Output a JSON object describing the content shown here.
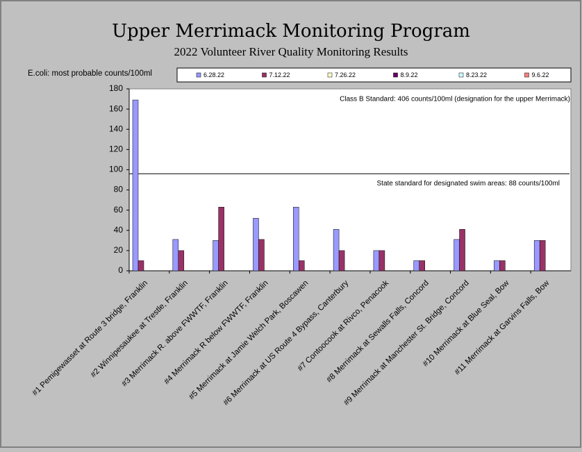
{
  "chart_data": {
    "type": "bar",
    "title": "Upper Merrimack Monitoring Program",
    "subtitle": "2022 Volunteer River Quality Monitoring Results",
    "y_label": "E.coli: most probable counts/100ml",
    "categories": [
      "#1 Pemigewasset at Route 3 bridge, Franklin",
      "#2 Winnipesaukee at Trestle, Franklin",
      "#3 Merrimack R. above FWWTF, Franklin",
      "#4 Merrimack R below FWWTF, Franklin",
      "#5 Merrimack at Jamie Welch Park, Boscawen",
      "#6 Merrimack at US Route 4 Bypass, Canterbury",
      "#7 Contoocook at Rivco, Penacook",
      "#8 Merrimack at Sewalls Falls, Concord",
      "#9 Merrimack at Manchester St. Bridge, Concord",
      "#10 Merrimack at Blue Seal, Bow",
      "#11 Merrimack at Garvins Falls, Bow"
    ],
    "series": [
      {
        "name": "6.28.22",
        "color": "#9999ff",
        "values": [
          169,
          31,
          30,
          52,
          63,
          41,
          20,
          10,
          31,
          10,
          30
        ]
      },
      {
        "name": "7.12.22",
        "color": "#993366",
        "values": [
          10,
          20,
          63,
          31,
          10,
          20,
          20,
          10,
          41,
          10,
          30
        ]
      },
      {
        "name": "7.26.22",
        "color": "#ffffcc",
        "values": [
          null,
          null,
          null,
          null,
          null,
          null,
          null,
          null,
          null,
          null,
          null
        ]
      },
      {
        "name": "8.9.22",
        "color": "#660066",
        "values": [
          null,
          null,
          null,
          null,
          null,
          null,
          null,
          null,
          null,
          null,
          null
        ]
      },
      {
        "name": "8.23.22",
        "color": "#ccffff",
        "values": [
          null,
          null,
          null,
          null,
          null,
          null,
          null,
          null,
          null,
          null,
          null
        ]
      },
      {
        "name": "9.6.22",
        "color": "#ff8080",
        "values": [
          null,
          null,
          null,
          null,
          null,
          null,
          null,
          null,
          null,
          null,
          null
        ]
      }
    ],
    "ylim": [
      0,
      180
    ],
    "yticks": [
      0,
      20,
      40,
      60,
      80,
      100,
      120,
      140,
      160,
      180
    ],
    "reference_line": 96,
    "annotations": [
      "Class B Standard: 406 counts/100ml (designation for the upper Merrimack)",
      "State standard for designated swim areas: 88 counts/100ml"
    ],
    "grid": false,
    "legend": "top"
  }
}
